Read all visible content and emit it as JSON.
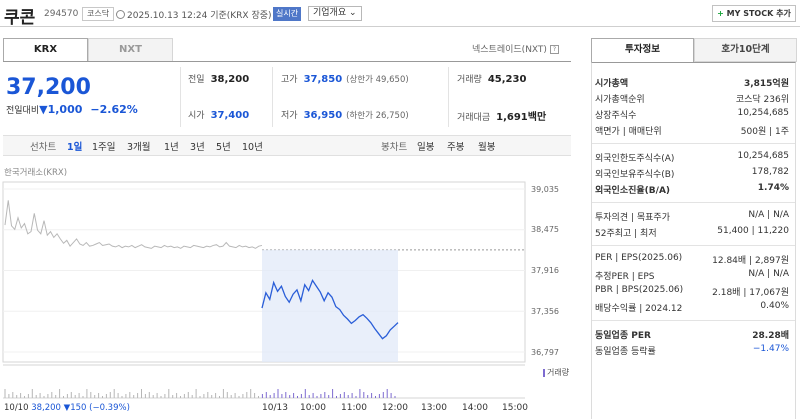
{
  "header": {
    "name": "쿠콘",
    "code": "294570",
    "market": "코스닥",
    "timestamp": "2025.10.13 12:24 기준(KRX 장중)",
    "realtime": "실시간",
    "overview": "기업개요 ⌄",
    "mystock": "MY STOCK 추가",
    "mystock_plus": "+"
  },
  "tabs": {
    "krx": "KRX",
    "nxt": "NXT",
    "nxt_trade": "넥스트레이드(NXT)"
  },
  "price": {
    "current": "37,200",
    "change_label": "전일대비",
    "change_arrow": "▼",
    "change": "1,000",
    "change_pct": "−2.62%"
  },
  "quote": {
    "prev_label": "전일",
    "prev": "38,200",
    "high_label": "고가",
    "high": "37,850",
    "upper_limit": "(상한가 49,650)",
    "volume_label": "거래량",
    "volume": "45,230",
    "open_label": "시가",
    "open": "37,400",
    "low_label": "저가",
    "low": "36,950",
    "lower_limit": "(하한가 26,750)",
    "value_label": "거래대금",
    "value": "1,691",
    "value_unit": "백만"
  },
  "periods": {
    "line_label": "선차트",
    "items": [
      "1일",
      "1주일",
      "3개월",
      "1년",
      "3년",
      "5년",
      "10년"
    ],
    "selected_index": 0,
    "candle_label": "봉차트",
    "candle_items": [
      "일봉",
      "주봉",
      "월봉"
    ]
  },
  "chart_data": {
    "type": "line",
    "source_label": "한국거래소(KRX)",
    "y_ticks": [
      "39,035",
      "38,475",
      "37,916",
      "37,356",
      "36,797"
    ],
    "y_range": [
      36797,
      39035
    ],
    "prev_close": 38200,
    "x_labels": [
      "10/13",
      "10:00",
      "11:00",
      "12:00",
      "13:00",
      "14:00",
      "15:00"
    ],
    "volume_legend": "거래량",
    "footer_date": "10/10",
    "footer_price": "38,200",
    "footer_change": "▼150",
    "footer_pct": "(−0.39%)",
    "prev_day_series": [
      38540,
      38880,
      38530,
      38480,
      38640,
      38500,
      38560,
      38420,
      38450,
      38700,
      38470,
      38420,
      38600,
      38400,
      38450,
      38370,
      38420,
      38350,
      38290,
      38330,
      38250,
      38300,
      38350,
      38280,
      38260,
      38300,
      38250,
      38260,
      38280,
      38300,
      38260,
      38270,
      38280,
      38250,
      38240,
      38260,
      38230,
      38250,
      38240,
      38260,
      38230,
      38250,
      38270,
      38240,
      38230,
      38220,
      38250,
      38240,
      38230,
      38260,
      38240,
      38250,
      38230,
      38240,
      38220,
      38250,
      38240,
      38230,
      38260,
      38250,
      38240,
      38230,
      38250,
      38240,
      38260,
      38270,
      38240,
      38250,
      38300,
      38250,
      38240,
      38230,
      38260,
      38240,
      38250,
      38230,
      38240,
      38220,
      38250,
      38260
    ],
    "today_series": [
      37400,
      37610,
      37520,
      37750,
      37630,
      37700,
      37560,
      37480,
      37590,
      37650,
      37500,
      37720,
      37640,
      37780,
      37700,
      37620,
      37500,
      37610,
      37550,
      37420,
      37380,
      37300,
      37250,
      37190,
      37230,
      37280,
      37310,
      37260,
      37200,
      37120,
      37050,
      36980,
      37020,
      37100,
      37150,
      37200
    ]
  },
  "right_tabs": {
    "invest": "투자정보",
    "quote10": "호가10단계"
  },
  "invest": {
    "market_cap_label": "시가총액",
    "market_cap": "3,815억원",
    "cap_rank_label": "시가총액순위",
    "cap_rank": "코스닥 236위",
    "shares_label": "상장주식수",
    "shares": "10,254,685",
    "par_label": "액면가 | 매매단위",
    "par": "500원 | 1주",
    "foreign_limit_label": "외국인한도주식수(A)",
    "foreign_limit": "10,254,685",
    "foreign_hold_label": "외국인보유주식수(B)",
    "foreign_hold": "178,782",
    "foreign_ratio_label": "외국인소진율(B/A)",
    "foreign_ratio": "1.74%",
    "opinion_label": "투자의견 | 목표주가",
    "opinion": "N/A | N/A",
    "w52_label": "52주최고 | 최저",
    "w52": "51,400 | 11,220",
    "per_label": "PER | EPS(2025.06)",
    "per": "12.84배 | 2,897원",
    "est_per_label": "추정PER | EPS",
    "est_per": "N/A | N/A",
    "pbr_label": "PBR | BPS(2025.06)",
    "pbr": "2.18배 | 17,067원",
    "div_label": "배당수익률 | 2024.12",
    "div": "0.40%",
    "sector_per_label": "동일업종 PER",
    "sector_per": "28.28배",
    "sector_chg_label": "동일업종 등락률",
    "sector_chg": "−1.47%"
  }
}
